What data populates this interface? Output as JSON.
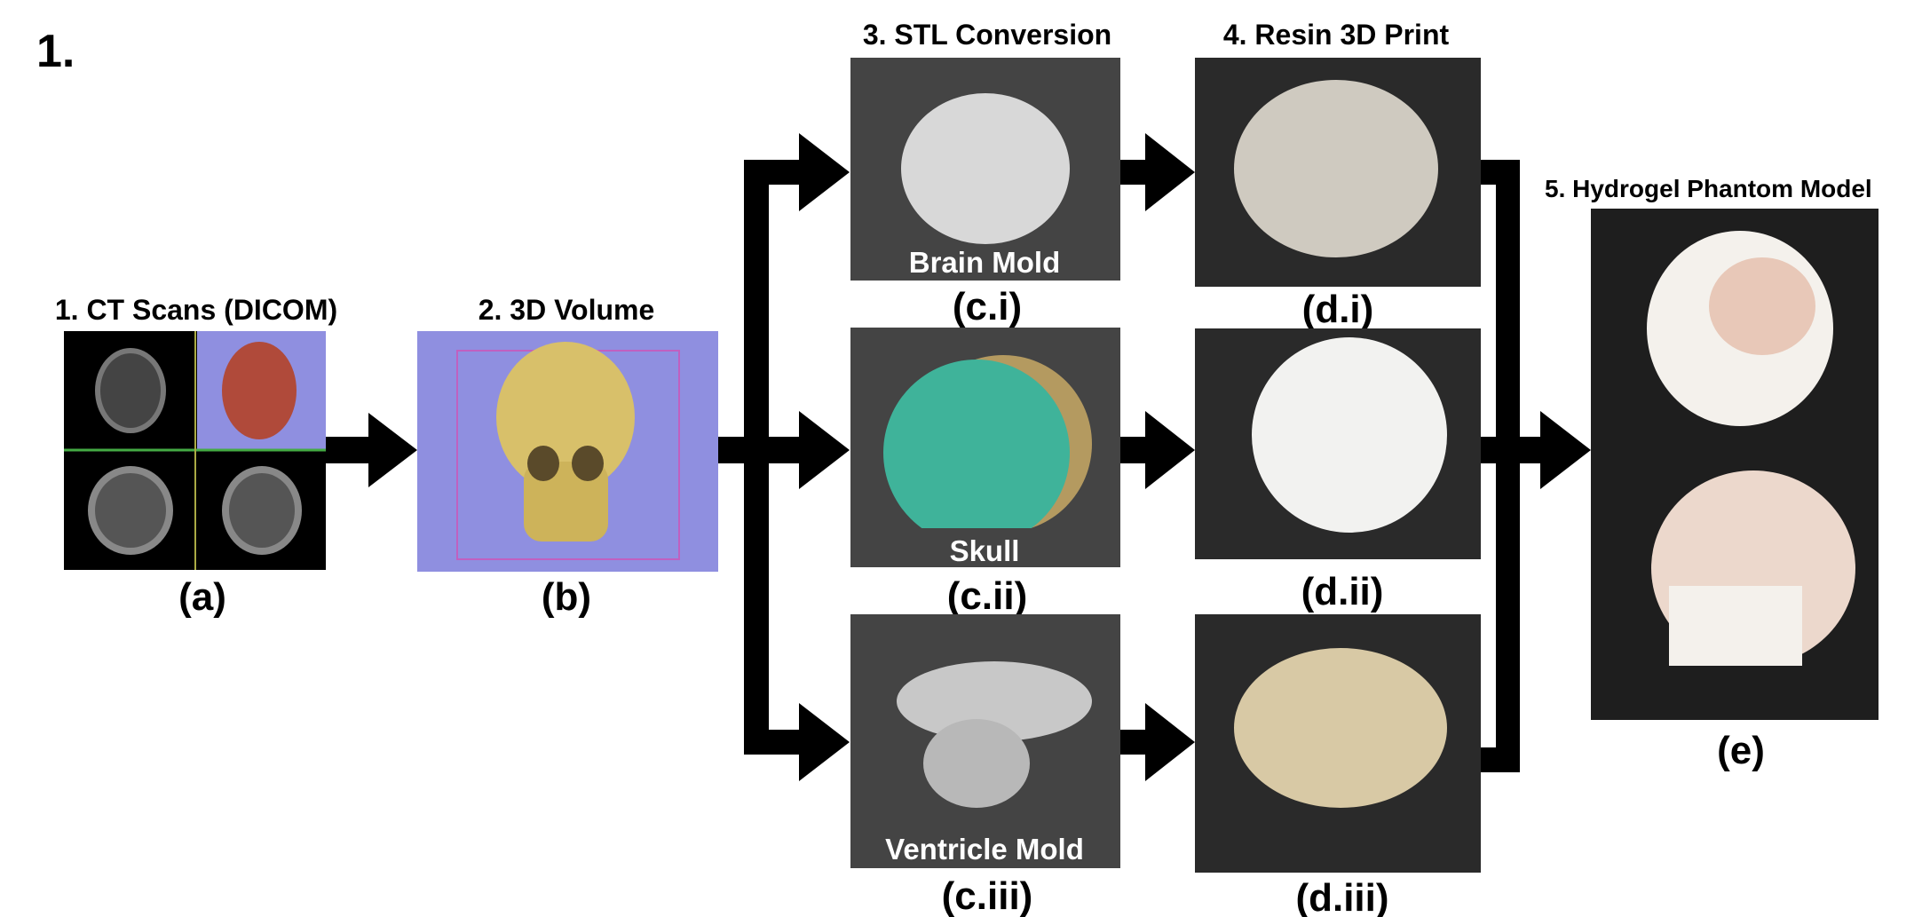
{
  "figure_number": "1.",
  "steps": [
    {
      "title": "1. CT Scans (DICOM)",
      "label": "(a)"
    },
    {
      "title": "2. 3D Volume",
      "label": "(b)"
    },
    {
      "title": "3. STL Conversion",
      "panels": [
        {
          "caption": "Brain Mold",
          "label": "(c.i)"
        },
        {
          "caption": "Skull",
          "label": "(c.ii)"
        },
        {
          "caption": "Ventricle Mold",
          "label": "(c.iii)"
        }
      ]
    },
    {
      "title": "4. Resin 3D Print",
      "panels": [
        {
          "label": "(d.i)"
        },
        {
          "label": "(d.ii)"
        },
        {
          "label": "(d.iii)"
        }
      ]
    },
    {
      "title": "5. Hydrogel Phantom Model",
      "label": "(e)"
    }
  ]
}
